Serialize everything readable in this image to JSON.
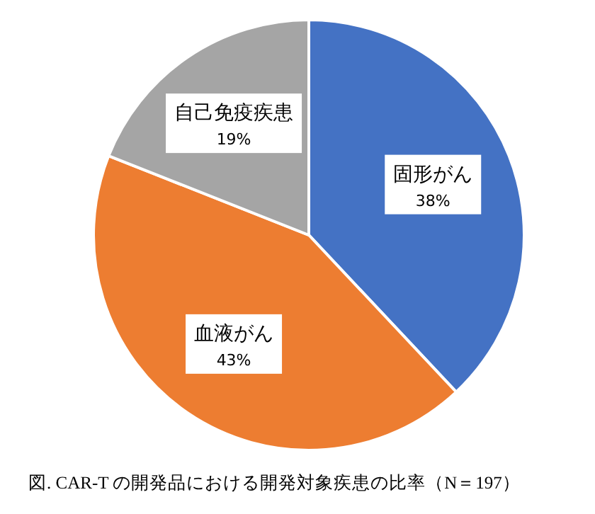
{
  "chart_data": {
    "type": "pie",
    "categories": [
      "固形がん",
      "血液がん",
      "自己免疫疾患"
    ],
    "values": [
      38,
      43,
      19
    ],
    "value_labels": [
      "38%",
      "43%",
      "19%"
    ],
    "colors": [
      "#4472c4",
      "#ed7d31",
      "#a5a5a5"
    ],
    "legend": false,
    "annotations": [
      "図. CAR-T の開発品における開発対象疾患の比率（N＝197）"
    ]
  }
}
